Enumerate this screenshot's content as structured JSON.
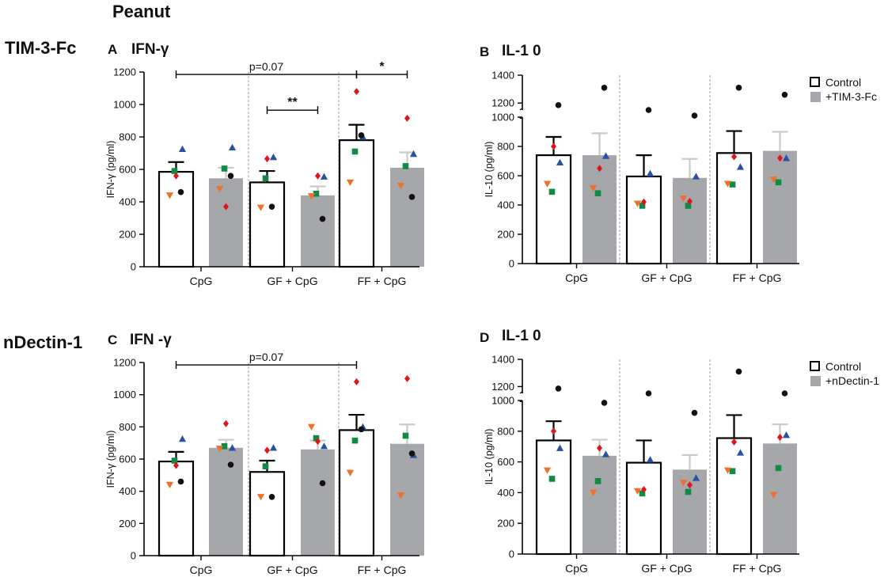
{
  "figure": {
    "top_title": "Peanut",
    "row_labels": [
      "TIM-3-Fc",
      "nDectin-1"
    ]
  },
  "colors": {
    "control_bar": "#ffffff",
    "treatment_bar": "#a5a7ab",
    "bar_edge": "#000000",
    "blue": "#2a4fa3",
    "green": "#118a45",
    "red": "#e0141c",
    "orange": "#f0702a",
    "black": "#111111"
  },
  "chart_data": [
    {
      "type": "bar",
      "letter": "A",
      "title": "IFN-γ",
      "ylabel": "IFN-γ (pg/ml)",
      "ylim": [
        0,
        1200
      ],
      "yticks": [
        0,
        200,
        400,
        600,
        800,
        1000,
        1200
      ],
      "categories": [
        "CpG",
        "GF + CpG",
        "FF + CpG"
      ],
      "series": [
        {
          "name": "Control",
          "values": [
            585,
            520,
            780
          ],
          "sem": [
            60,
            70,
            95
          ]
        },
        {
          "name": "+TIM-3-Fc",
          "values": [
            545,
            440,
            610
          ],
          "sem": [
            65,
            55,
            95
          ]
        }
      ],
      "points": [
        {
          "blue": 725,
          "green": 590,
          "red": 560,
          "orange": 440,
          "black": 460
        },
        {
          "blue": 735,
          "green": 605,
          "red": 370,
          "orange": 480,
          "black": 560
        },
        {
          "blue": 675,
          "green": 545,
          "red": 665,
          "orange": 365,
          "black": 370
        },
        {
          "blue": 555,
          "green": 450,
          "red": 560,
          "orange": 435,
          "black": 295
        },
        {
          "blue": 800,
          "green": 710,
          "red": 1080,
          "orange": 520,
          "black": 810
        },
        {
          "blue": 695,
          "green": 620,
          "red": 915,
          "orange": 500,
          "black": 430
        }
      ],
      "annotations": [
        {
          "text": "p=0.07",
          "x1": 0,
          "x2": 4,
          "y": 1185
        },
        {
          "text": "**",
          "x1": 2,
          "x2": 3,
          "y": 965
        },
        {
          "text": "*",
          "x1": 4,
          "x2": 5,
          "y": 1185
        }
      ],
      "legend": null
    },
    {
      "type": "bar",
      "letter": "B",
      "title": "IL-1 0",
      "ylabel": "IL-10 (pg/ml)",
      "ylim": [
        0,
        1400
      ],
      "yticks": [
        0,
        200,
        400,
        600,
        800,
        1000,
        1200,
        1400
      ],
      "axis_break": [
        1000,
        1150
      ],
      "categories": [
        "CpG",
        "GF + CpG",
        "FF + CpG"
      ],
      "series": [
        {
          "name": "Control",
          "values": [
            740,
            595,
            755
          ],
          "sem": [
            125,
            145,
            150
          ]
        },
        {
          "name": "+TIM-3-Fc",
          "values": [
            740,
            585,
            770
          ],
          "sem": [
            150,
            130,
            130
          ]
        }
      ],
      "points": [
        {
          "blue": 690,
          "green": 490,
          "red": 800,
          "orange": 545,
          "black": 1185
        },
        {
          "blue": 735,
          "green": 480,
          "red": 650,
          "orange": 515,
          "black": 1310
        },
        {
          "blue": 615,
          "green": 395,
          "red": 420,
          "orange": 410,
          "black": 1150
        },
        {
          "blue": 595,
          "green": 395,
          "red": 425,
          "orange": 445,
          "black": 1110
        },
        {
          "blue": 660,
          "green": 540,
          "red": 730,
          "orange": 545,
          "black": 1310
        },
        {
          "blue": 720,
          "green": 555,
          "red": 720,
          "orange": 575,
          "black": 1260
        }
      ],
      "annotations": [],
      "legend": [
        "Control",
        "+TIM-3-Fc"
      ]
    },
    {
      "type": "bar",
      "letter": "C",
      "title": "IFN -γ",
      "ylabel": "IFN-γ (pg/ml)",
      "ylim": [
        0,
        1200
      ],
      "yticks": [
        0,
        200,
        400,
        600,
        800,
        1000,
        1200
      ],
      "categories": [
        "CpG",
        "GF + CpG",
        "FF + CpG"
      ],
      "series": [
        {
          "name": "Control",
          "values": [
            585,
            520,
            780
          ],
          "sem": [
            60,
            70,
            95
          ]
        },
        {
          "name": "+nDectin-1",
          "values": [
            670,
            660,
            695
          ],
          "sem": [
            50,
            55,
            120
          ]
        }
      ],
      "points": [
        {
          "blue": 725,
          "green": 590,
          "red": 560,
          "orange": 440,
          "black": 460
        },
        {
          "blue": 670,
          "green": 680,
          "red": 820,
          "orange": 665,
          "black": 565
        },
        {
          "blue": 670,
          "green": 555,
          "red": 655,
          "orange": 365,
          "black": 365
        },
        {
          "blue": 680,
          "green": 730,
          "red": 710,
          "orange": 800,
          "black": 450
        },
        {
          "blue": 800,
          "green": 715,
          "red": 1080,
          "orange": 515,
          "black": 785
        },
        {
          "blue": 625,
          "green": 745,
          "red": 1100,
          "orange": 375,
          "black": 635
        }
      ],
      "annotations": [
        {
          "text": "p=0.07",
          "x1": 0,
          "x2": 4,
          "y": 1185
        }
      ],
      "legend": null
    },
    {
      "type": "bar",
      "letter": "D",
      "title": "IL-1 0",
      "ylabel": "IL-10 (pg/ml)",
      "ylim": [
        0,
        1400
      ],
      "yticks": [
        0,
        200,
        400,
        600,
        800,
        1000,
        1200,
        1400
      ],
      "axis_break": [
        1000,
        1150
      ],
      "categories": [
        "CpG",
        "GF + CpG",
        "FF + CpG"
      ],
      "series": [
        {
          "name": "Control",
          "values": [
            740,
            595,
            755
          ],
          "sem": [
            125,
            145,
            150
          ]
        },
        {
          "name": "+nDectin-1",
          "values": [
            640,
            550,
            720
          ],
          "sem": [
            105,
            95,
            125
          ]
        }
      ],
      "points": [
        {
          "blue": 690,
          "green": 490,
          "red": 800,
          "orange": 545,
          "black": 1185
        },
        {
          "blue": 650,
          "green": 475,
          "red": 690,
          "orange": 400,
          "black": 985
        },
        {
          "blue": 615,
          "green": 395,
          "red": 420,
          "orange": 410,
          "black": 1150
        },
        {
          "blue": 495,
          "green": 405,
          "red": 450,
          "orange": 465,
          "black": 920
        },
        {
          "blue": 660,
          "green": 540,
          "red": 730,
          "orange": 545,
          "black": 1310
        },
        {
          "blue": 775,
          "green": 560,
          "red": 760,
          "orange": 385,
          "black": 1150
        }
      ],
      "annotations": [],
      "legend": [
        "Control",
        "+nDectin-1"
      ]
    }
  ]
}
